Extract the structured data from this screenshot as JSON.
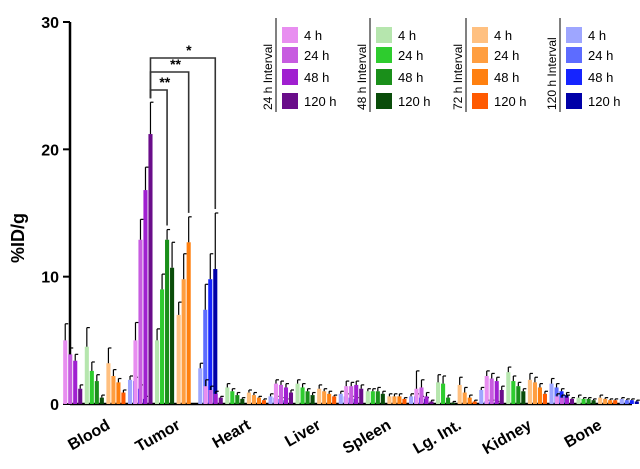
{
  "chart_data": {
    "type": "bar",
    "ylabel": "%ID/g",
    "ylim": [
      0,
      30
    ],
    "yticks": [
      0,
      10,
      20,
      30
    ],
    "categories": [
      "Blood",
      "Tumor",
      "Heart",
      "Liver",
      "Spleen",
      "Lg. Int.",
      "Kidney",
      "Bone"
    ],
    "groups": [
      {
        "name": "24 h Interval",
        "series": [
          {
            "name": "4 h",
            "color": "#e88ef0",
            "values": [
              5.0,
              5.0,
              1.4,
              1.6,
              1.4,
              1.2,
              2.2,
              0.6
            ],
            "errors": [
              1.3,
              1.4,
              0.5,
              0.3,
              0.4,
              1.4,
              0.4,
              0.2
            ]
          },
          {
            "name": "24 h",
            "color": "#c75ce0",
            "values": [
              3.9,
              12.9,
              1.1,
              1.5,
              1.4,
              1.3,
              2.0,
              0.5
            ],
            "errors": [
              0.5,
              1.6,
              0.3,
              0.3,
              0.3,
              0.6,
              0.4,
              0.2
            ]
          },
          {
            "name": "48 h",
            "color": "#a020d0",
            "values": [
              3.4,
              16.8,
              0.8,
              1.3,
              1.5,
              0.6,
              1.8,
              0.5
            ],
            "errors": [
              0.5,
              1.8,
              0.2,
              0.3,
              0.3,
              0.3,
              0.3,
              0.2
            ]
          },
          {
            "name": "120 h",
            "color": "#6a0d8a",
            "values": [
              1.2,
              21.2,
              0.5,
              0.9,
              1.2,
              0.2,
              1.1,
              0.4
            ],
            "errors": [
              0.3,
              2.5,
              0.1,
              0.2,
              0.3,
              0.1,
              0.3,
              0.1
            ]
          }
        ]
      },
      {
        "name": "48 h Interval",
        "series": [
          {
            "name": "4 h",
            "color": "#b6e6ae",
            "values": [
              4.5,
              5.0,
              1.3,
              1.6,
              1.0,
              1.7,
              2.5,
              0.5
            ],
            "errors": [
              1.5,
              0.9,
              0.3,
              0.3,
              0.2,
              0.6,
              0.4,
              0.2
            ]
          },
          {
            "name": "24 h",
            "color": "#2ecc2e",
            "values": [
              2.6,
              9.0,
              1.0,
              1.3,
              1.0,
              1.6,
              1.8,
              0.4
            ],
            "errors": [
              0.7,
              1.2,
              0.2,
              0.3,
              0.2,
              0.6,
              0.4,
              0.1
            ]
          },
          {
            "name": "48 h",
            "color": "#1a8f1a",
            "values": [
              1.8,
              12.9,
              0.7,
              1.0,
              1.0,
              0.5,
              1.4,
              0.4
            ],
            "errors": [
              0.5,
              0.8,
              0.2,
              0.2,
              0.3,
              0.2,
              0.3,
              0.1
            ]
          },
          {
            "name": "120 h",
            "color": "#0a4d0a",
            "values": [
              0.5,
              10.7,
              0.4,
              0.7,
              0.8,
              0.1,
              1.0,
              0.3
            ],
            "errors": [
              0.2,
              2.0,
              0.1,
              0.2,
              0.2,
              0.1,
              0.2,
              0.1
            ]
          }
        ]
      },
      {
        "name": "72 h Interval",
        "series": [
          {
            "name": "4 h",
            "color": "#ffc080",
            "values": [
              3.2,
              7.0,
              0.9,
              1.2,
              0.6,
              1.5,
              1.9,
              0.5
            ],
            "errors": [
              1.2,
              1.0,
              0.2,
              0.3,
              0.2,
              0.6,
              0.5,
              0.2
            ]
          },
          {
            "name": "24 h",
            "color": "#ff9e40",
            "values": [
              2.2,
              9.8,
              0.7,
              1.0,
              0.6,
              0.9,
              1.7,
              0.4
            ],
            "errors": [
              0.5,
              2.0,
              0.2,
              0.2,
              0.2,
              0.4,
              0.4,
              0.1
            ]
          },
          {
            "name": "48 h",
            "color": "#ff8010",
            "values": [
              1.7,
              12.7,
              0.5,
              0.8,
              0.6,
              0.5,
              1.3,
              0.3
            ],
            "errors": [
              0.3,
              2.0,
              0.1,
              0.2,
              0.2,
              0.2,
              0.3,
              0.1
            ]
          },
          {
            "name": "120 h",
            "color": "#ff5a00",
            "values": [
              0.9,
              0.0,
              0.3,
              0.6,
              0.4,
              0.2,
              0.8,
              0.3
            ],
            "errors": [
              0.2,
              0.0,
              0.1,
              0.1,
              0.1,
              0.1,
              0.2,
              0.1
            ]
          }
        ]
      },
      {
        "name": "120 h Interval",
        "series": [
          {
            "name": "4 h",
            "color": "#9ea6ff",
            "values": [
              1.9,
              2.8,
              0.6,
              0.8,
              0.6,
              1.1,
              1.6,
              0.4
            ],
            "errors": [
              0.3,
              0.4,
              0.2,
              0.2,
              0.2,
              0.2,
              0.4,
              0.1
            ]
          },
          {
            "name": "24 h",
            "color": "#5d6cff",
            "values": [
              1.8,
              7.4,
              0.5,
              0.6,
              0.6,
              0.2,
              1.3,
              0.3
            ],
            "errors": [
              0.3,
              2.0,
              0.1,
              0.2,
              0.2,
              0.1,
              0.3,
              0.1
            ]
          },
          {
            "name": "48 h",
            "color": "#1524ff",
            "values": [
              1.2,
              9.8,
              0.4,
              0.5,
              0.5,
              0.2,
              1.0,
              0.3
            ],
            "errors": [
              0.3,
              2.0,
              0.1,
              0.1,
              0.1,
              0.1,
              0.2,
              0.1
            ]
          },
          {
            "name": "120 h",
            "color": "#0000a8",
            "values": [
              0.4,
              10.6,
              0.3,
              0.4,
              0.4,
              0.1,
              0.7,
              0.2
            ],
            "errors": [
              0.2,
              4.4,
              0.1,
              0.1,
              0.1,
              0.1,
              0.2,
              0.1
            ]
          }
        ]
      }
    ],
    "significance": [
      {
        "label": "**",
        "category": "Tumor",
        "from_group": 0,
        "from_series": 3,
        "to_group": 1,
        "to_series": 2
      },
      {
        "label": "**",
        "category": "Tumor",
        "from_group": 0,
        "from_series": 3,
        "to_group": 2,
        "to_series": 2
      },
      {
        "label": "*",
        "category": "Tumor",
        "from_group": 0,
        "from_series": 3,
        "to_group": 3,
        "to_series": 3
      }
    ],
    "legend_position": "top-right"
  }
}
